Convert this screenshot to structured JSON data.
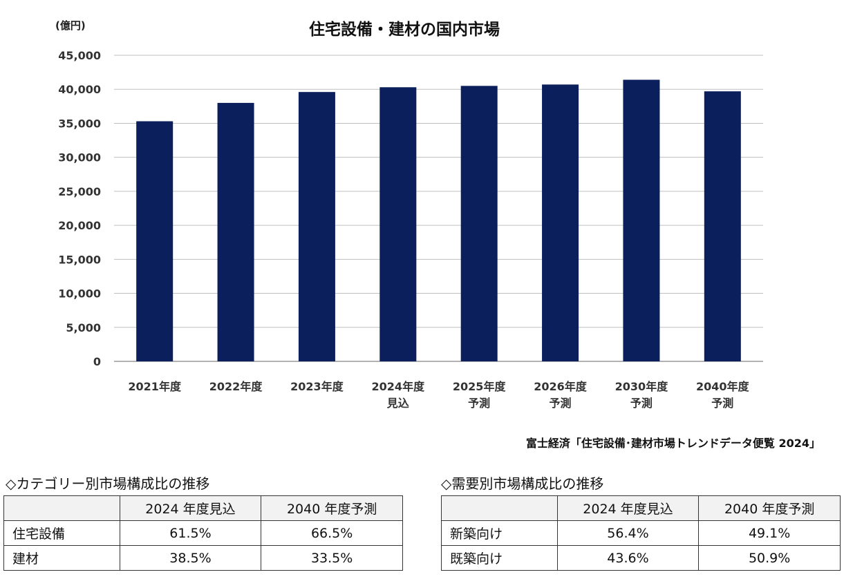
{
  "chart_data": {
    "type": "bar",
    "title": "住宅設備・建材の国内市場",
    "unit_label": "(億円)",
    "categories": [
      [
        "2021年度"
      ],
      [
        "2022年度"
      ],
      [
        "2023年度"
      ],
      [
        "2024年度",
        "見込"
      ],
      [
        "2025年度",
        "予測"
      ],
      [
        "2026年度",
        "予測"
      ],
      [
        "2030年度",
        "予測"
      ],
      [
        "2040年度",
        "予測"
      ]
    ],
    "values": [
      35300,
      38000,
      39600,
      40300,
      40500,
      40700,
      41400,
      39700
    ],
    "ylim": [
      0,
      45000
    ],
    "yticks": [
      0,
      5000,
      10000,
      15000,
      20000,
      25000,
      30000,
      35000,
      40000,
      45000
    ],
    "ytick_labels": [
      "0",
      "5,000",
      "10,000",
      "15,000",
      "20,000",
      "25,000",
      "30,000",
      "35,000",
      "40,000",
      "45,000"
    ],
    "bar_color": "#0b1f5c",
    "grid": true
  },
  "source": "富士経済「住宅設備･建材市場トレンドデータ便覧 2024」",
  "category_table": {
    "title": "◇カテゴリー別市場構成比の推移",
    "headers": [
      "",
      "2024 年度見込",
      "2040 年度予測"
    ],
    "rows": [
      {
        "label": "住宅設備",
        "v1": "61.5%",
        "v2": "66.5%"
      },
      {
        "label": "建材",
        "v1": "38.5%",
        "v2": "33.5%"
      }
    ]
  },
  "demand_table": {
    "title": "◇需要別市場構成比の推移",
    "headers": [
      "",
      "2024 年度見込",
      "2040 年度予測"
    ],
    "rows": [
      {
        "label": "新築向け",
        "v1": "56.4%",
        "v2": "49.1%"
      },
      {
        "label": "既築向け",
        "v1": "43.6%",
        "v2": "50.9%"
      }
    ]
  }
}
